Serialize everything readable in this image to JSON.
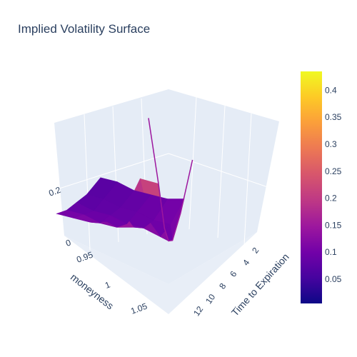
{
  "chart_data": {
    "type": "surface",
    "title": "Implied Volatility Surface",
    "x_axis": {
      "title": "moneyness",
      "ticks": [
        "0.95",
        "1",
        "1.05"
      ]
    },
    "y_axis": {
      "title": "Time to Expiration",
      "ticks": [
        "2",
        "4",
        "6",
        "8",
        "10",
        "12"
      ]
    },
    "z_axis": {
      "title": "",
      "ticks": [
        "0",
        "0.2"
      ],
      "range": [
        0,
        0.45
      ]
    },
    "colorbar": {
      "ticks": [
        "0.05",
        "0.1",
        "0.15",
        "0.2",
        "0.25",
        "0.3",
        "0.35",
        "0.4"
      ],
      "range": [
        0.005,
        0.435
      ],
      "colorscale": [
        "#0d0887",
        "#46039f",
        "#7201a8",
        "#9c179e",
        "#bd3786",
        "#d8576b",
        "#ed7953",
        "#fb9f3a",
        "#fdca26",
        "#f0f921"
      ]
    },
    "surface_slices": [
      {
        "ttm": 1,
        "points": [
          [
            0.88,
            0.22
          ],
          [
            0.94,
            0.13
          ],
          [
            0.98,
            0.09
          ],
          [
            1.0,
            0.1
          ],
          [
            1.02,
            0.14
          ],
          [
            1.05,
            0.26
          ],
          [
            1.1,
            0.44
          ]
        ]
      },
      {
        "ttm": 2,
        "points": [
          [
            0.88,
            0.12
          ],
          [
            0.95,
            0.1
          ],
          [
            1.0,
            0.1
          ],
          [
            1.05,
            0.16
          ],
          [
            1.1,
            0.29
          ]
        ]
      },
      {
        "ttm": 4,
        "points": [
          [
            0.88,
            0.1
          ],
          [
            0.95,
            0.09
          ],
          [
            1.0,
            0.1
          ],
          [
            1.05,
            0.13
          ],
          [
            1.1,
            0.19
          ]
        ]
      },
      {
        "ttm": 6,
        "points": [
          [
            0.88,
            0.09
          ],
          [
            0.95,
            0.09
          ],
          [
            1.0,
            0.09
          ],
          [
            1.05,
            0.11
          ],
          [
            1.1,
            0.15
          ]
        ]
      },
      {
        "ttm": 8,
        "points": [
          [
            0.88,
            0.08
          ],
          [
            0.95,
            0.08
          ],
          [
            1.0,
            0.09
          ],
          [
            1.05,
            0.1
          ],
          [
            1.1,
            0.13
          ]
        ]
      },
      {
        "ttm": 10,
        "points": [
          [
            0.88,
            0.08
          ],
          [
            0.95,
            0.08
          ],
          [
            1.0,
            0.08
          ],
          [
            1.05,
            0.1
          ],
          [
            1.1,
            0.12
          ]
        ]
      },
      {
        "ttm": 12,
        "points": [
          [
            0.88,
            0.07
          ],
          [
            0.95,
            0.07
          ],
          [
            1.0,
            0.08
          ],
          [
            1.05,
            0.09
          ],
          [
            1.1,
            0.11
          ]
        ]
      }
    ]
  }
}
